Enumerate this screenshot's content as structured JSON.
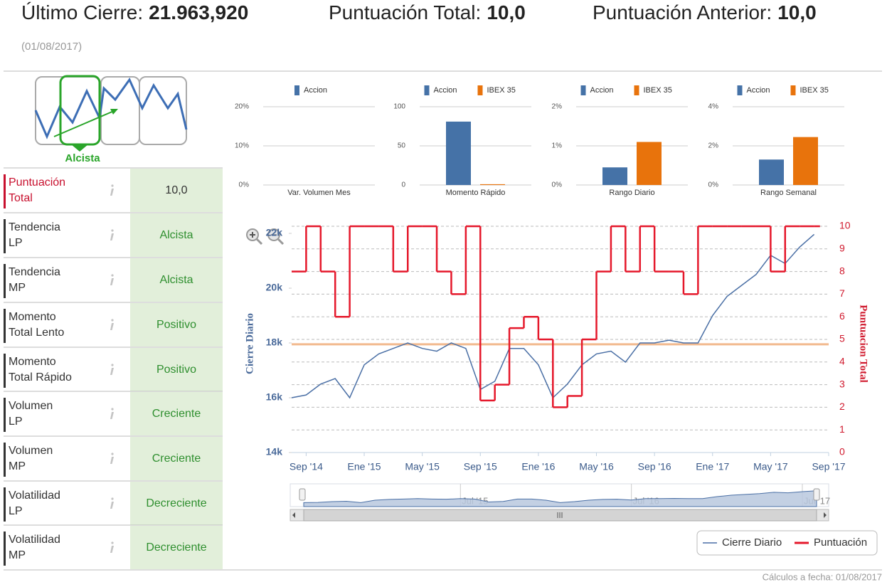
{
  "header": {
    "last_close_label": "Último Cierre:",
    "last_close": "21.963,920",
    "total_score_label": "Puntuación Total:",
    "total_score": "10,0",
    "previous_score_label": "Puntuación Anterior:",
    "previous_score": "10,0",
    "date": "(01/08/2017)"
  },
  "trend": {
    "label": "Alcista"
  },
  "rows": [
    {
      "label": [
        "Puntuación",
        "Total"
      ],
      "value": "10,0"
    },
    {
      "label": [
        "Tendencia",
        "LP"
      ],
      "value": "Alcista"
    },
    {
      "label": [
        "Tendencia",
        "MP"
      ],
      "value": "Alcista"
    },
    {
      "label": [
        "Momento",
        "Total Lento"
      ],
      "value": "Positivo"
    },
    {
      "label": [
        "Momento",
        "Total Rápido"
      ],
      "value": "Positivo"
    },
    {
      "label": [
        "Volumen",
        "LP"
      ],
      "value": "Creciente"
    },
    {
      "label": [
        "Volumen",
        "MP"
      ],
      "value": "Creciente"
    },
    {
      "label": [
        "Volatilidad",
        "LP"
      ],
      "value": "Decreciente"
    },
    {
      "label": [
        "Volatilidad",
        "MP"
      ],
      "value": "Decreciente"
    }
  ],
  "chart_data": [
    {
      "type": "bar",
      "categories": [
        "Var. Volumen Mes"
      ],
      "series": [
        {
          "name": "Accion",
          "color": "#4572a7",
          "values": [
            0
          ]
        }
      ],
      "ylim": [
        0,
        20
      ],
      "yticks": [
        {
          "value": 0,
          "label": "0%"
        },
        {
          "value": 10,
          "label": "10%"
        },
        {
          "value": 20,
          "label": "20%"
        }
      ],
      "grid": true
    },
    {
      "type": "bar",
      "categories": [
        "Momento Rápido"
      ],
      "series": [
        {
          "name": "Accion",
          "color": "#4572a7",
          "values": [
            81
          ]
        },
        {
          "name": "IBEX 35",
          "color": "#e8730c",
          "values": [
            1
          ]
        }
      ],
      "ylim": [
        0,
        100
      ],
      "yticks": [
        0,
        50,
        100
      ],
      "grid": true
    },
    {
      "type": "bar",
      "categories": [
        "Rango Diario"
      ],
      "series": [
        {
          "name": "Accion",
          "color": "#4572a7",
          "values": [
            0.45
          ]
        },
        {
          "name": "IBEX 35",
          "color": "#e8730c",
          "values": [
            1.1
          ]
        }
      ],
      "ylim": [
        0,
        2
      ],
      "yticks": [
        {
          "value": 0,
          "label": "0%"
        },
        {
          "value": 1,
          "label": "1%"
        },
        {
          "value": 2,
          "label": "2%"
        }
      ],
      "grid": true
    },
    {
      "type": "bar",
      "categories": [
        "Rango Semanal"
      ],
      "series": [
        {
          "name": "Accion",
          "color": "#4572a7",
          "values": [
            1.3
          ]
        },
        {
          "name": "IBEX 35",
          "color": "#e8730c",
          "values": [
            2.45
          ]
        }
      ],
      "ylim": [
        0,
        4
      ],
      "yticks": [
        {
          "value": 0,
          "label": "0%"
        },
        {
          "value": 2,
          "label": "2%"
        },
        {
          "value": 4,
          "label": "4%"
        }
      ],
      "grid": true
    },
    {
      "type": "line",
      "x": [
        "2014-08",
        "2014-09",
        "2014-10",
        "2014-11",
        "2014-12",
        "2015-01",
        "2015-02",
        "2015-03",
        "2015-04",
        "2015-05",
        "2015-06",
        "2015-07",
        "2015-08",
        "2015-09",
        "2015-10",
        "2015-11",
        "2015-12",
        "2016-01",
        "2016-02",
        "2016-03",
        "2016-04",
        "2016-05",
        "2016-06",
        "2016-07",
        "2016-08",
        "2016-09",
        "2016-10",
        "2016-11",
        "2016-12",
        "2017-01",
        "2017-02",
        "2017-03",
        "2017-04",
        "2017-05",
        "2017-06",
        "2017-07",
        "2017-08"
      ],
      "series": [
        {
          "name": "Cierre Diario",
          "color": "#4a6fa5",
          "values": [
            16000,
            16100,
            16500,
            16700,
            16000,
            17200,
            17600,
            17800,
            18000,
            17800,
            17700,
            18000,
            17800,
            16300,
            16600,
            17800,
            17800,
            17200,
            16000,
            16500,
            17200,
            17600,
            17700,
            17300,
            18000,
            18000,
            18100,
            18000,
            18000,
            19000,
            19700,
            20100,
            20500,
            21200,
            20900,
            21500,
            21964
          ]
        },
        {
          "name": "Puntuación",
          "color": "#e5182b",
          "axis": "y2",
          "step": true,
          "values": [
            8,
            10,
            8,
            6,
            10,
            10,
            10,
            8,
            10,
            10,
            8,
            7,
            10,
            2.3,
            3,
            5.5,
            6,
            5,
            2,
            2.5,
            5,
            8,
            10,
            8,
            10,
            8,
            8,
            7,
            10,
            10,
            10,
            10,
            10,
            8,
            10,
            10,
            10
          ]
        }
      ],
      "xlim": [
        "2014-08",
        "2017-09"
      ],
      "xticks": [
        {
          "value": "2014-09",
          "label": "Sep '14"
        },
        {
          "value": "2015-01",
          "label": "Ene '15"
        },
        {
          "value": "2015-05",
          "label": "May '15"
        },
        {
          "value": "2015-09",
          "label": "Sep '15"
        },
        {
          "value": "2016-01",
          "label": "Ene '16"
        },
        {
          "value": "2016-05",
          "label": "May '16"
        },
        {
          "value": "2016-09",
          "label": "Sep '16"
        },
        {
          "value": "2017-01",
          "label": "Ene '17"
        },
        {
          "value": "2017-05",
          "label": "May '17"
        },
        {
          "value": "2017-09",
          "label": "Sep '17"
        }
      ],
      "ylim": [
        14000,
        22000
      ],
      "yticks": [
        {
          "value": 14000,
          "label": "14k"
        },
        {
          "value": 16000,
          "label": "16k"
        },
        {
          "value": 18000,
          "label": "18k"
        },
        {
          "value": 20000,
          "label": "20k"
        },
        {
          "value": 22000,
          "label": "22k"
        }
      ],
      "y2lim": [
        0,
        10
      ],
      "y2ticks": [
        0,
        1,
        2,
        3,
        4,
        5,
        6,
        7,
        8,
        9,
        10
      ],
      "ylabel": "Cierre Diario",
      "y2label": "Puntuacion Total",
      "reference_line": {
        "value": 17950,
        "color": "#f2b98e"
      },
      "navigator_ticks": [
        {
          "value": "2015-07",
          "label": "Jul '15"
        },
        {
          "value": "2016-07",
          "label": "Jul '16"
        },
        {
          "value": "2017-07",
          "label": "Jul '17"
        }
      ],
      "grid": true,
      "legend": "bottom-right"
    }
  ],
  "footer": "Cálculos a fecha: 01/08/2017"
}
